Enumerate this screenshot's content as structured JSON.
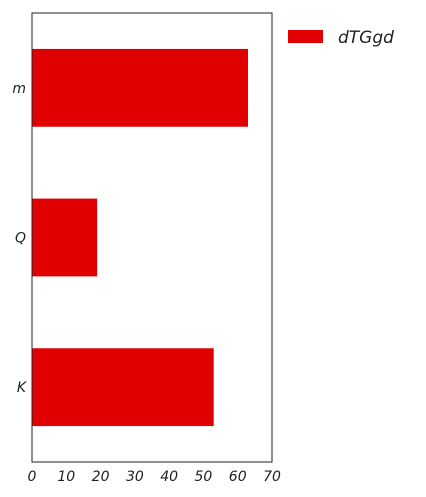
{
  "chart_data": {
    "type": "bar",
    "orientation": "horizontal",
    "categories": [
      "m",
      "Q",
      "K"
    ],
    "series": [
      {
        "name": "dTGgd",
        "values": [
          63,
          19,
          53
        ],
        "color": "#e00000"
      }
    ],
    "xlim": [
      0,
      70
    ],
    "xticks": [
      "0",
      "10",
      "20",
      "30",
      "40",
      "50",
      "60",
      "70"
    ],
    "grid": false,
    "legend_position": "outside-top-right"
  }
}
